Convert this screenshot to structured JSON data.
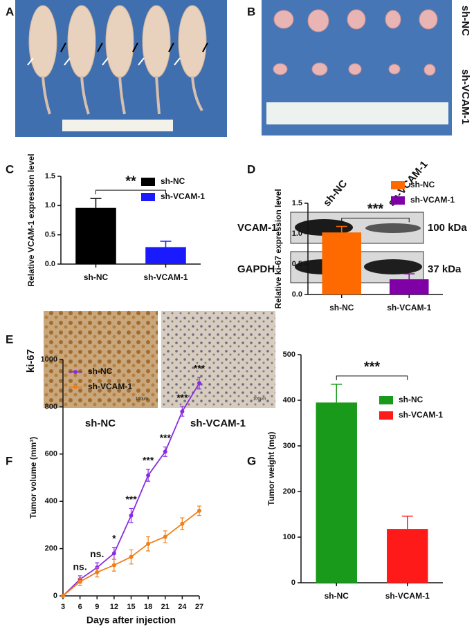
{
  "panel_labels": [
    "A",
    "B",
    "C",
    "D",
    "E",
    "F",
    "G"
  ],
  "photo_b": {
    "row_labels": [
      "sh-NC",
      "sh-VCAM-1"
    ]
  },
  "blot": {
    "lanes": [
      "sh-NC",
      "sh-VCAM-1"
    ],
    "rows": [
      {
        "protein": "VCAM-1",
        "size": "100 kDa"
      },
      {
        "protein": "GAPDH",
        "size": "37 kDa"
      }
    ]
  },
  "ihc": {
    "stain": "ki-67",
    "groups": [
      "sh-NC",
      "sh-VCAM-1"
    ],
    "scale": "100μm"
  },
  "chart_data": [
    {
      "type": "bar",
      "categories": [
        "sh-NC",
        "sh-VCAM-1"
      ],
      "values": [
        0.96,
        0.29
      ],
      "errors": [
        0.16,
        0.1
      ],
      "colors": [
        "#000000",
        "#1a1aff"
      ],
      "ylabel": "Relative VCAM-1 expression level",
      "ylim": [
        0,
        1.5
      ],
      "yticks": [
        {
          "value": 0,
          "label": "0.0"
        },
        0.5,
        {
          "value": 1,
          "label": "1.0"
        },
        1.5
      ],
      "significance": "**",
      "legend": "upper center"
    },
    {
      "type": "bar",
      "categories": [
        "sh-NC",
        "sh-VCAM-1"
      ],
      "values": [
        1.02,
        0.25
      ],
      "errors": [
        0.1,
        0.09
      ],
      "colors": [
        "#ff6a00",
        "#7f00a6"
      ],
      "ylabel": "Relative ki-67 expression level",
      "ylim": [
        0,
        1.5
      ],
      "yticks": [
        {
          "value": 0,
          "label": "0.0"
        },
        0.5,
        {
          "value": 1,
          "label": "1.0"
        },
        1.5
      ],
      "significance": "***",
      "legend": "upper right"
    },
    {
      "type": "line",
      "x": [
        3,
        6,
        9,
        12,
        15,
        18,
        21,
        24,
        27
      ],
      "xlim": [
        3,
        27
      ],
      "xticks": [
        3,
        6,
        9,
        12,
        15,
        18,
        21,
        24,
        27
      ],
      "ylim": [
        0,
        1000
      ],
      "yticks": [
        0,
        200,
        400,
        600,
        800,
        1000
      ],
      "xlabel": "Days after injection",
      "ylabel": "Tumor volume (mm³)",
      "series": [
        {
          "name": "sh-NC",
          "color": "#8a2be2",
          "values": [
            0,
            70,
            120,
            180,
            340,
            510,
            610,
            780,
            900
          ],
          "errors": [
            0,
            15,
            20,
            25,
            30,
            25,
            20,
            20,
            25
          ]
        },
        {
          "name": "sh-VCAM-1",
          "color": "#f07f1a",
          "values": [
            0,
            60,
            100,
            130,
            165,
            220,
            250,
            305,
            360
          ],
          "errors": [
            0,
            15,
            20,
            25,
            30,
            30,
            25,
            25,
            20
          ]
        }
      ],
      "annotations": [
        {
          "x": 6,
          "text": "ns."
        },
        {
          "x": 9,
          "text": "ns."
        },
        {
          "x": 12,
          "text": "*"
        },
        {
          "x": 15,
          "text": "***"
        },
        {
          "x": 18,
          "text": "***"
        },
        {
          "x": 21,
          "text": "***"
        },
        {
          "x": 24,
          "text": "***"
        },
        {
          "x": 27,
          "text": "***"
        }
      ],
      "legend": "upper left"
    },
    {
      "type": "bar",
      "categories": [
        "sh-NC",
        "sh-VCAM-1"
      ],
      "values": [
        395,
        118
      ],
      "errors": [
        40,
        28
      ],
      "colors": [
        "#1a9a1a",
        "#ff1a1a"
      ],
      "ylabel": "Tumor weight (mg)",
      "ylim": [
        0,
        500
      ],
      "yticks": [
        0,
        100,
        200,
        300,
        400,
        500
      ],
      "significance": "***",
      "legend": "center right"
    }
  ]
}
